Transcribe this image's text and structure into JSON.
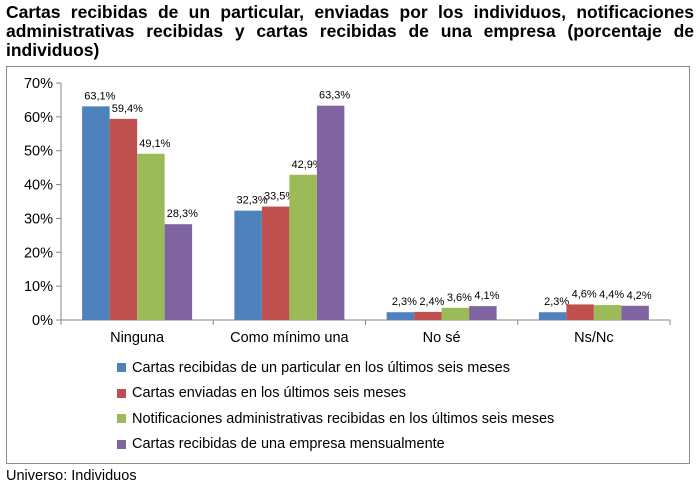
{
  "footer": "Universo: Individuos",
  "chart_data": {
    "type": "bar",
    "title": "Cartas recibidas de un particular, enviadas por los individuos, notificaciones administrativas recibidas y cartas recibidas de una empresa (porcentaje de individuos)",
    "xlabel": "",
    "ylabel": "",
    "ylim": [
      0,
      70
    ],
    "yticks": [
      "0%",
      "10%",
      "20%",
      "30%",
      "40%",
      "50%",
      "60%",
      "70%"
    ],
    "ytick_values": [
      0,
      10,
      20,
      30,
      40,
      50,
      60,
      70
    ],
    "grid": false,
    "legend_position": "bottom",
    "categories": [
      "Ninguna",
      "Como mínimo una",
      "No sé",
      "Ns/Nc"
    ],
    "series": [
      {
        "name": "Cartas recibidas de un particular en los últimos seis meses",
        "color": "#4f81bd",
        "values": [
          63.1,
          32.3,
          2.3,
          2.3
        ],
        "labels": [
          "63,1%",
          "32,3%",
          "2,3%",
          "2,3%"
        ]
      },
      {
        "name": "Cartas enviadas en los últimos seis meses",
        "color": "#c0504d",
        "values": [
          59.4,
          33.5,
          2.4,
          4.6
        ],
        "labels": [
          "59,4%",
          "33,5%",
          "2,4%",
          "4,6%"
        ]
      },
      {
        "name": "Notificaciones administrativas recibidas en los últimos seis meses",
        "color": "#9bbb59",
        "values": [
          49.1,
          42.9,
          3.6,
          4.4
        ],
        "labels": [
          "49,1%",
          "42,9%",
          "3,6%",
          "4,4%"
        ]
      },
      {
        "name": "Cartas recibidas de una empresa mensualmente",
        "color": "#8064a2",
        "values": [
          28.3,
          63.3,
          4.1,
          4.2
        ],
        "labels": [
          "28,3%",
          "63,3%",
          "4,1%",
          "4,2%"
        ]
      }
    ]
  }
}
